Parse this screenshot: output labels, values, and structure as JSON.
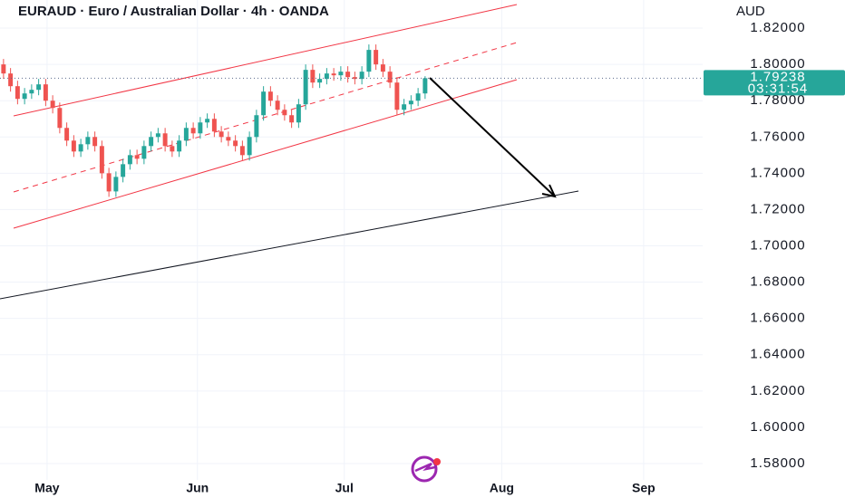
{
  "chart_data": {
    "type": "candlestick",
    "title": "EURAUD · Euro / Australian Dollar · 4h · OANDA",
    "currency": "AUD",
    "last_price": 1.79238,
    "countdown": "03:31:54",
    "up_color": "#26a69a",
    "down_color": "#ef5350",
    "ylim": [
      1.571,
      1.8355
    ],
    "xlim": [
      -0.5,
      99.5
    ],
    "grid": true,
    "yticks": [
      {
        "value": 1.58,
        "label": "1.58000"
      },
      {
        "value": 1.6,
        "label": "1.60000"
      },
      {
        "value": 1.62,
        "label": "1.62000"
      },
      {
        "value": 1.64,
        "label": "1.64000"
      },
      {
        "value": 1.66,
        "label": "1.66000"
      },
      {
        "value": 1.68,
        "label": "1.68000"
      },
      {
        "value": 1.7,
        "label": "1.70000"
      },
      {
        "value": 1.72,
        "label": "1.72000"
      },
      {
        "value": 1.74,
        "label": "1.74000"
      },
      {
        "value": 1.76,
        "label": "1.76000"
      },
      {
        "value": 1.78,
        "label": "1.78000"
      },
      {
        "value": 1.8,
        "label": "1.80000"
      },
      {
        "value": 1.82,
        "label": "1.82000"
      }
    ],
    "xticks": [
      {
        "value": 6.2,
        "label": "May"
      },
      {
        "value": 27.6,
        "label": "Jun"
      },
      {
        "value": 48.5,
        "label": "Jul"
      },
      {
        "value": 70.9,
        "label": "Aug"
      },
      {
        "value": 91.1,
        "label": "Sep"
      }
    ],
    "open": [
      1.8,
      1.795,
      1.788,
      1.781,
      1.784,
      1.786,
      1.789,
      1.78,
      1.776,
      1.765,
      1.758,
      1.752,
      1.756,
      1.76,
      1.755,
      1.74,
      1.73,
      1.738,
      1.745,
      1.75,
      1.748,
      1.755,
      1.76,
      1.762,
      1.755,
      1.752,
      1.758,
      1.765,
      1.762,
      1.768,
      1.77,
      1.763,
      1.76,
      1.758,
      1.755,
      1.75,
      1.76,
      1.772,
      1.785,
      1.78,
      1.775,
      1.772,
      1.768,
      1.778,
      1.797,
      1.79,
      1.792,
      1.795,
      1.794,
      1.796,
      1.793,
      1.792,
      1.796,
      1.808,
      1.8,
      1.796,
      1.79,
      1.775,
      1.778,
      1.78,
      1.784
    ],
    "high": [
      1.803,
      1.798,
      1.791,
      1.787,
      1.789,
      1.792,
      1.792,
      1.783,
      1.779,
      1.768,
      1.761,
      1.759,
      1.763,
      1.763,
      1.758,
      1.743,
      1.741,
      1.748,
      1.753,
      1.753,
      1.758,
      1.763,
      1.765,
      1.765,
      1.758,
      1.761,
      1.768,
      1.768,
      1.771,
      1.773,
      1.773,
      1.766,
      1.763,
      1.761,
      1.758,
      1.763,
      1.775,
      1.788,
      1.788,
      1.783,
      1.778,
      1.775,
      1.781,
      1.8,
      1.8,
      1.795,
      1.798,
      1.798,
      1.799,
      1.799,
      1.796,
      1.799,
      1.811,
      1.811,
      1.803,
      1.799,
      1.793,
      1.781,
      1.783,
      1.787,
      1.7935
    ],
    "low": [
      1.792,
      1.785,
      1.778,
      1.778,
      1.781,
      1.783,
      1.777,
      1.773,
      1.762,
      1.755,
      1.749,
      1.749,
      1.753,
      1.752,
      1.737,
      1.727,
      1.727,
      1.735,
      1.742,
      1.745,
      1.745,
      1.752,
      1.757,
      1.752,
      1.749,
      1.749,
      1.755,
      1.759,
      1.759,
      1.765,
      1.76,
      1.757,
      1.755,
      1.752,
      1.747,
      1.747,
      1.757,
      1.769,
      1.777,
      1.772,
      1.769,
      1.765,
      1.765,
      1.775,
      1.787,
      1.787,
      1.789,
      1.791,
      1.791,
      1.79,
      1.789,
      1.789,
      1.793,
      1.797,
      1.793,
      1.787,
      1.772,
      1.772,
      1.775,
      1.777,
      1.781
    ],
    "close": [
      1.795,
      1.788,
      1.781,
      1.784,
      1.786,
      1.789,
      1.78,
      1.776,
      1.765,
      1.758,
      1.752,
      1.756,
      1.76,
      1.755,
      1.74,
      1.73,
      1.738,
      1.745,
      1.75,
      1.748,
      1.755,
      1.76,
      1.762,
      1.755,
      1.752,
      1.758,
      1.765,
      1.762,
      1.768,
      1.77,
      1.763,
      1.76,
      1.758,
      1.755,
      1.75,
      1.76,
      1.772,
      1.785,
      1.78,
      1.775,
      1.772,
      1.768,
      1.778,
      1.797,
      1.79,
      1.792,
      1.795,
      1.794,
      1.796,
      1.793,
      1.792,
      1.796,
      1.808,
      1.8,
      1.796,
      1.79,
      1.775,
      1.778,
      1.78,
      1.784,
      1.7924
    ]
  }
}
